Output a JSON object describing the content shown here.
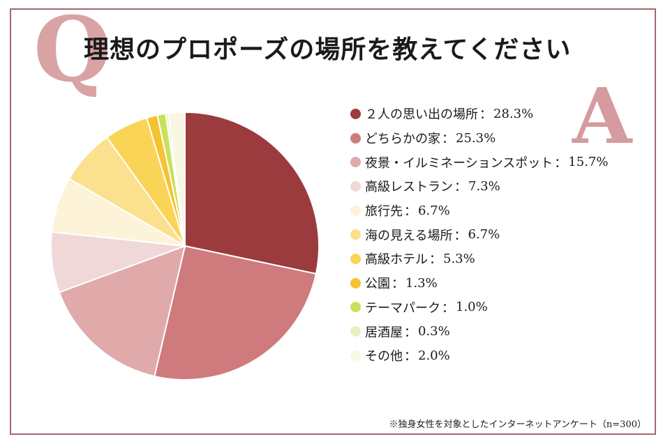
{
  "header": {
    "q_letter": "Q",
    "a_letter": "A",
    "title": "理想のプロポーズの場所を教えてください"
  },
  "colors": {
    "frame": "#a4686b",
    "q_letter": "#d9a3a4",
    "a_letter": "#d59b9e"
  },
  "footnote": "※独身女性を対象としたインターネットアンケート（n=300）",
  "chart_data": {
    "type": "pie",
    "title": "理想のプロポーズの場所を教えてください",
    "unit": "%",
    "legend_position": "right",
    "slices": [
      {
        "label": "２人の思い出の場所",
        "value": 28.3,
        "display": "28.3%",
        "color": "#9b3b3d"
      },
      {
        "label": "どちらかの家",
        "value": 25.3,
        "display": "25.3%",
        "color": "#cf7a7d"
      },
      {
        "label": "夜景・イルミネーションスポット",
        "value": 15.7,
        "display": "15.7%",
        "color": "#e0aaab"
      },
      {
        "label": "高級レストラン",
        "value": 7.3,
        "display": "7.3%",
        "color": "#f0d8d8"
      },
      {
        "label": "旅行先",
        "value": 6.7,
        "display": "6.7%",
        "color": "#fdf3d8"
      },
      {
        "label": "海の見える場所",
        "value": 6.7,
        "display": "6.7%",
        "color": "#fbe08d"
      },
      {
        "label": "高級ホテル",
        "value": 5.3,
        "display": "5.3%",
        "color": "#f9d456"
      },
      {
        "label": "公園",
        "value": 1.3,
        "display": "1.3%",
        "color": "#f5c232"
      },
      {
        "label": "テーマパーク",
        "value": 1.0,
        "display": "1.0%",
        "color": "#c9e05a"
      },
      {
        "label": "居酒屋",
        "value": 0.3,
        "display": "0.3%",
        "color": "#e6f2bf"
      },
      {
        "label": "その他",
        "value": 2.0,
        "display": "2.0%",
        "color": "#f9f7e2"
      }
    ]
  }
}
